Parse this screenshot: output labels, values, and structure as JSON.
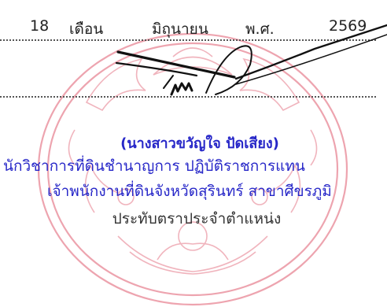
{
  "date": {
    "day": "18",
    "month_label": "เดือน",
    "month": "มิถุนายน",
    "era_label": "พ.ศ.",
    "year": "2569"
  },
  "signer": {
    "name": "(นางสาวขวัญใจ ปัดเสียง)",
    "position_line1": "นักวิชาการที่ดินชำนาญการ ปฏิบัติราชการแทน",
    "position_line2": "เจ้าพนักงานที่ดินจังหวัดสุรินทร์ สาขาศีขรภูมิ",
    "stamp_caption": "ประทับตราประจำตำแหน่ง"
  },
  "colors": {
    "ink_blue": "#2727c8",
    "stamp_red": "#e05a6e",
    "signature_black": "#111111"
  }
}
